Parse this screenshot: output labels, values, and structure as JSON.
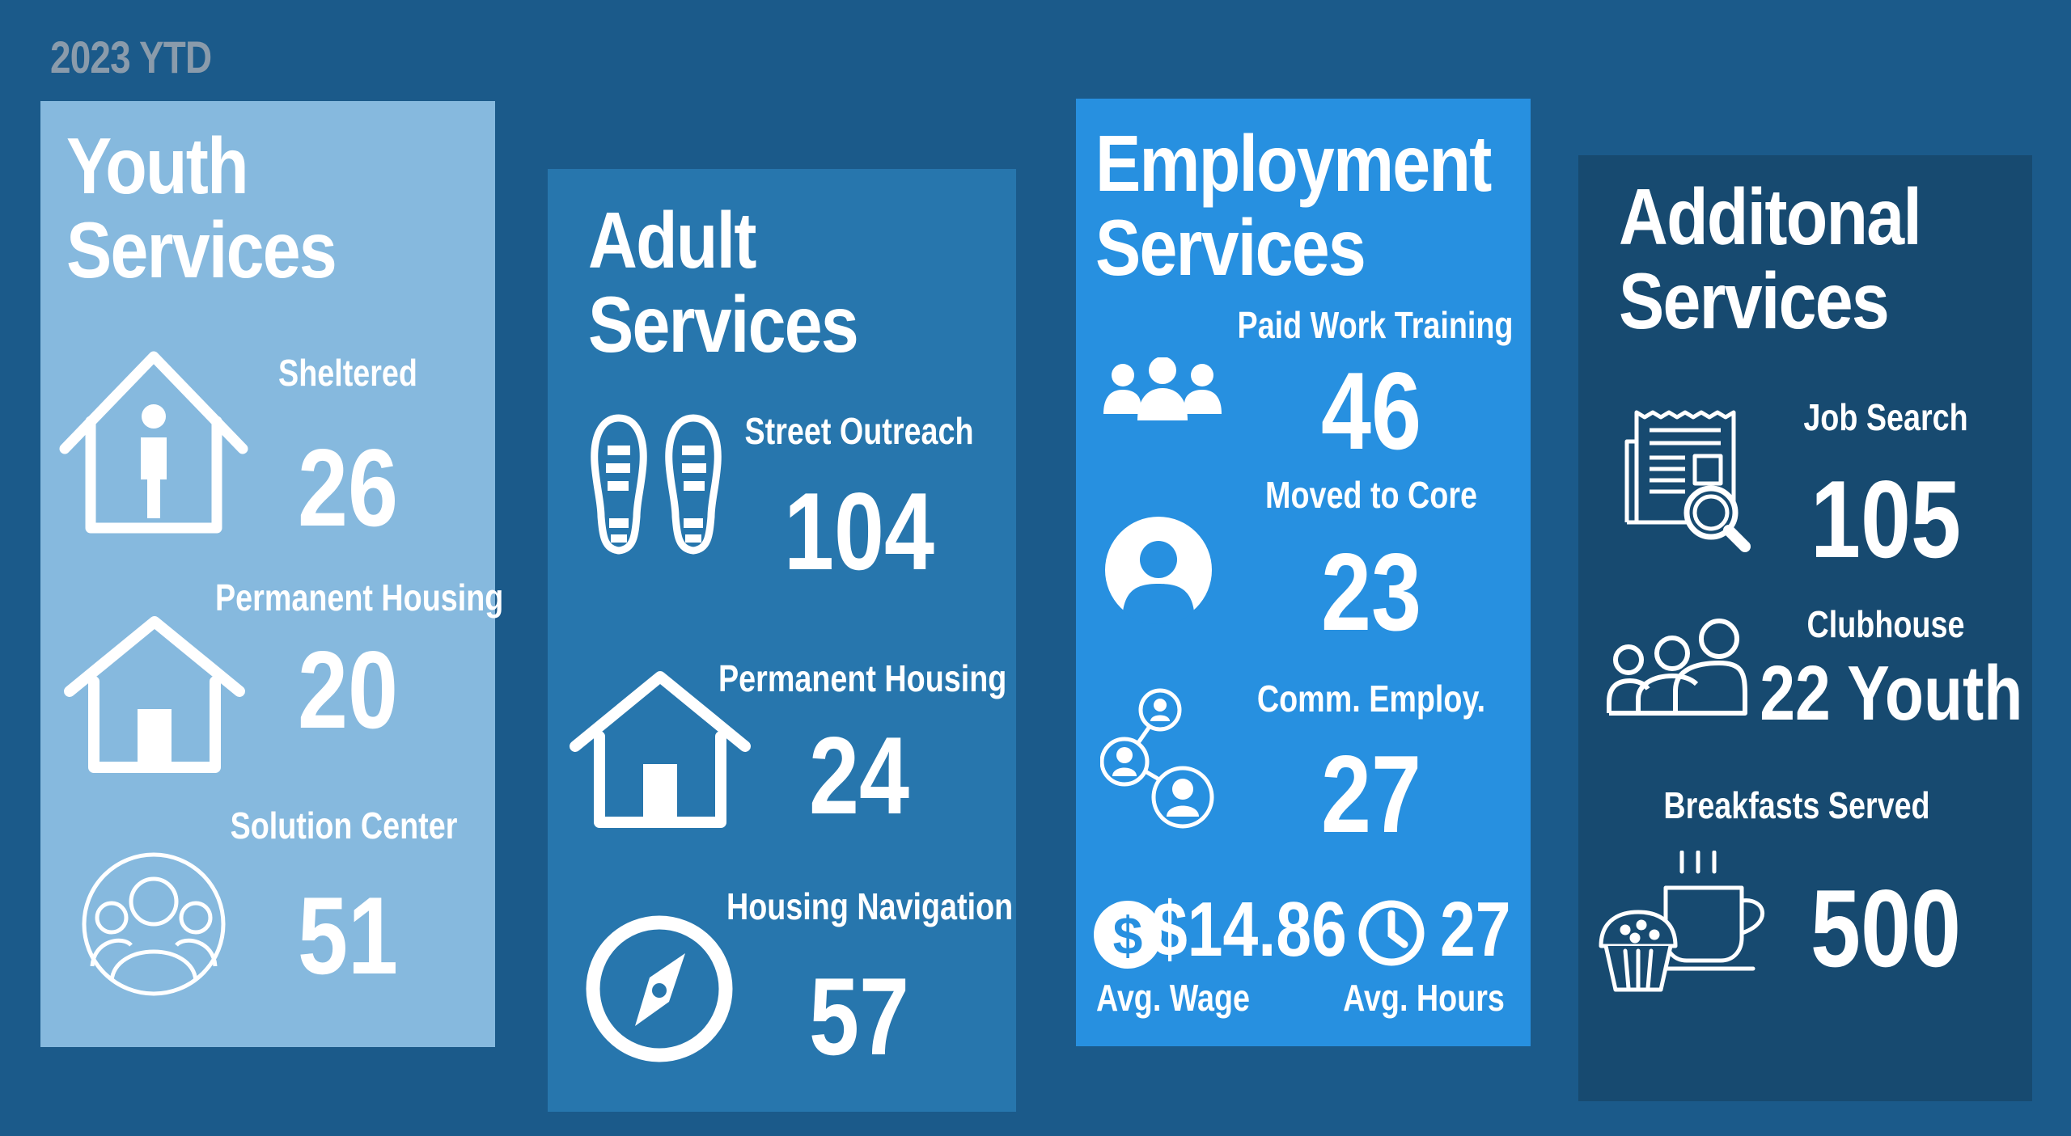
{
  "period_label": "2023 YTD",
  "youth": {
    "title": "Youth\nServices",
    "stats": [
      {
        "label": "Sheltered",
        "value": "26",
        "icon": "house-person-icon"
      },
      {
        "label": "Permanent Housing",
        "value": "20",
        "icon": "house-icon"
      },
      {
        "label": "Solution Center",
        "value": "51",
        "icon": "group-circle-icon"
      }
    ]
  },
  "adult": {
    "title": "Adult\nServices",
    "stats": [
      {
        "label": "Street Outreach",
        "value": "104",
        "icon": "footprints-icon"
      },
      {
        "label": "Permanent Housing",
        "value": "24",
        "icon": "house-icon"
      },
      {
        "label": "Housing Navigation",
        "value": "57",
        "icon": "compass-icon"
      }
    ]
  },
  "employment": {
    "title": "Employment\nServices",
    "stats": [
      {
        "label": "Paid Work Training",
        "value": "46",
        "icon": "people-group-icon"
      },
      {
        "label": "Moved to Core",
        "value": "23",
        "icon": "person-circle-icon"
      },
      {
        "label": "Comm. Employ.",
        "value": "27",
        "icon": "network-people-icon"
      }
    ],
    "wage": {
      "value": "$14.86",
      "label": "Avg. Wage",
      "icon": "dollar-icon"
    },
    "hours": {
      "value": "27",
      "label": "Avg. Hours",
      "icon": "clock-icon"
    }
  },
  "additional": {
    "title": "Additonal\nServices",
    "stats": [
      {
        "label": "Job Search",
        "value": "105",
        "icon": "newspaper-search-icon"
      },
      {
        "label": "Clubhouse",
        "value": "22 Youth",
        "icon": "people-outline-icon"
      },
      {
        "label": "Breakfasts Served",
        "value": "500",
        "icon": "coffee-muffin-icon"
      }
    ]
  },
  "colors": {
    "background": "#1b5a8a",
    "youth_panel": "#86b9de",
    "adult_panel": "#2776ad",
    "employment_panel": "#2790e0",
    "additional_panel": "#174a70"
  }
}
